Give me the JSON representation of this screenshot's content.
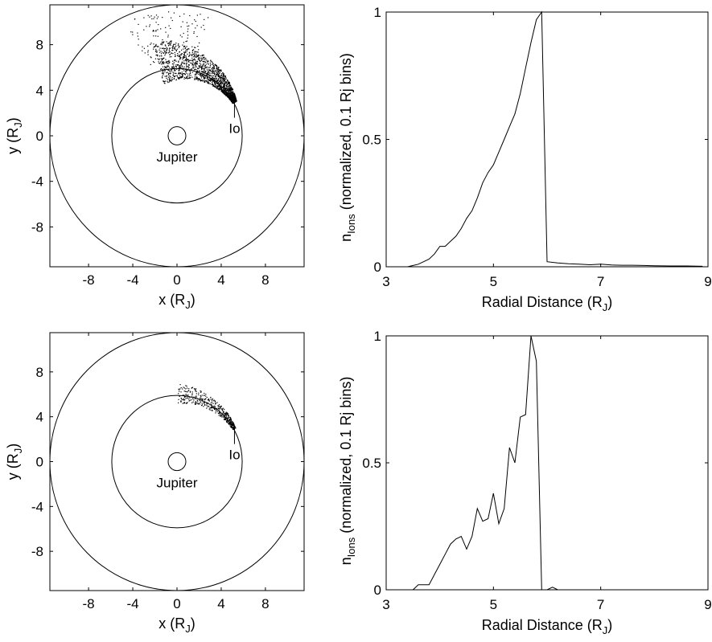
{
  "chart_data": [
    {
      "type": "scatter",
      "panel": "top-left",
      "xlabel": "x (R",
      "xlabel_sub": "J",
      "xlabel_close": ")",
      "ylabel": "y (R",
      "ylabel_sub": "J",
      "ylabel_close": ")",
      "xlim": [
        -11.5,
        11.5
      ],
      "ylim": [
        -11.5,
        11.5
      ],
      "xticks": [
        -8,
        -4,
        0,
        4,
        8
      ],
      "yticks": [
        -8,
        -4,
        0,
        4,
        8
      ],
      "circles_radius": [
        0.8,
        5.9,
        11.5
      ],
      "annotations": {
        "center": "Jupiter",
        "moon": "Io"
      },
      "io_position": [
        5.2,
        3.0
      ],
      "particle_cloud": {
        "density": "high",
        "x_range": [
          -4,
          5.2
        ],
        "y_range": [
          2.6,
          10.5
        ]
      }
    },
    {
      "type": "line",
      "panel": "top-right",
      "xlabel": "Radial Distance (R",
      "xlabel_sub": "J",
      "xlabel_close": ")",
      "ylabel_main": "n",
      "ylabel_sub": "Ions",
      "ylabel_rest": "  (normalized, 0.1 Rj bins)",
      "xlim": [
        3,
        9
      ],
      "ylim": [
        0,
        1
      ],
      "xticks": [
        3,
        5,
        7,
        9
      ],
      "yticks": [
        0,
        0.5,
        1
      ],
      "ytick_labels": [
        "0",
        "0.5",
        "1"
      ],
      "x": [
        3.4,
        3.6,
        3.8,
        3.9,
        4.0,
        4.1,
        4.2,
        4.3,
        4.4,
        4.5,
        4.6,
        4.7,
        4.8,
        4.9,
        5.0,
        5.1,
        5.2,
        5.3,
        5.4,
        5.5,
        5.6,
        5.7,
        5.8,
        5.9,
        6.0,
        6.2,
        6.4,
        6.6,
        6.8,
        7.0,
        7.2,
        7.4,
        7.6,
        7.8,
        8.0,
        8.3,
        8.6,
        8.9
      ],
      "y": [
        0.0,
        0.01,
        0.03,
        0.05,
        0.08,
        0.08,
        0.1,
        0.12,
        0.15,
        0.19,
        0.22,
        0.27,
        0.33,
        0.37,
        0.4,
        0.45,
        0.5,
        0.55,
        0.6,
        0.68,
        0.78,
        0.88,
        0.97,
        1.0,
        0.02,
        0.015,
        0.012,
        0.01,
        0.008,
        0.01,
        0.007,
        0.006,
        0.006,
        0.005,
        0.004,
        0.003,
        0.003,
        0.002
      ]
    },
    {
      "type": "scatter",
      "panel": "bottom-left",
      "xlabel": "x (R",
      "xlabel_sub": "J",
      "xlabel_close": ")",
      "ylabel": "y (R",
      "ylabel_sub": "J",
      "ylabel_close": ")",
      "xlim": [
        -11.5,
        11.5
      ],
      "ylim": [
        -11.5,
        11.5
      ],
      "xticks": [
        -8,
        -4,
        0,
        4,
        8
      ],
      "yticks": [
        -8,
        -4,
        0,
        4,
        8
      ],
      "circles_radius": [
        0.8,
        5.9,
        11.5
      ],
      "annotations": {
        "center": "Jupiter",
        "moon": "Io"
      },
      "io_position": [
        5.2,
        3.0
      ],
      "particle_cloud": {
        "density": "low",
        "x_range": [
          -1,
          5.2
        ],
        "y_range": [
          2.6,
          6
        ]
      }
    },
    {
      "type": "line",
      "panel": "bottom-right",
      "xlabel": "Radial Distance (R",
      "xlabel_sub": "J",
      "xlabel_close": ")",
      "ylabel_main": "n",
      "ylabel_sub": "Ions",
      "ylabel_rest": "  (normalized, 0.1 Rj bins)",
      "xlim": [
        3,
        9
      ],
      "ylim": [
        0,
        1
      ],
      "xticks": [
        3,
        5,
        7,
        9
      ],
      "yticks": [
        0,
        0.5,
        1
      ],
      "ytick_labels": [
        "0",
        "0.5",
        "1"
      ],
      "x": [
        3.4,
        3.5,
        3.6,
        3.7,
        3.8,
        3.9,
        4.0,
        4.1,
        4.2,
        4.3,
        4.4,
        4.5,
        4.6,
        4.7,
        4.8,
        4.9,
        5.0,
        5.1,
        5.2,
        5.3,
        5.4,
        5.5,
        5.6,
        5.7,
        5.8,
        5.9,
        6.0,
        6.1,
        6.2
      ],
      "y": [
        0.0,
        0.0,
        0.02,
        0.02,
        0.02,
        0.06,
        0.1,
        0.14,
        0.18,
        0.2,
        0.21,
        0.16,
        0.21,
        0.32,
        0.27,
        0.28,
        0.38,
        0.26,
        0.32,
        0.56,
        0.5,
        0.68,
        0.69,
        1.0,
        0.9,
        0.0,
        0.0,
        0.01,
        0.0
      ]
    }
  ]
}
